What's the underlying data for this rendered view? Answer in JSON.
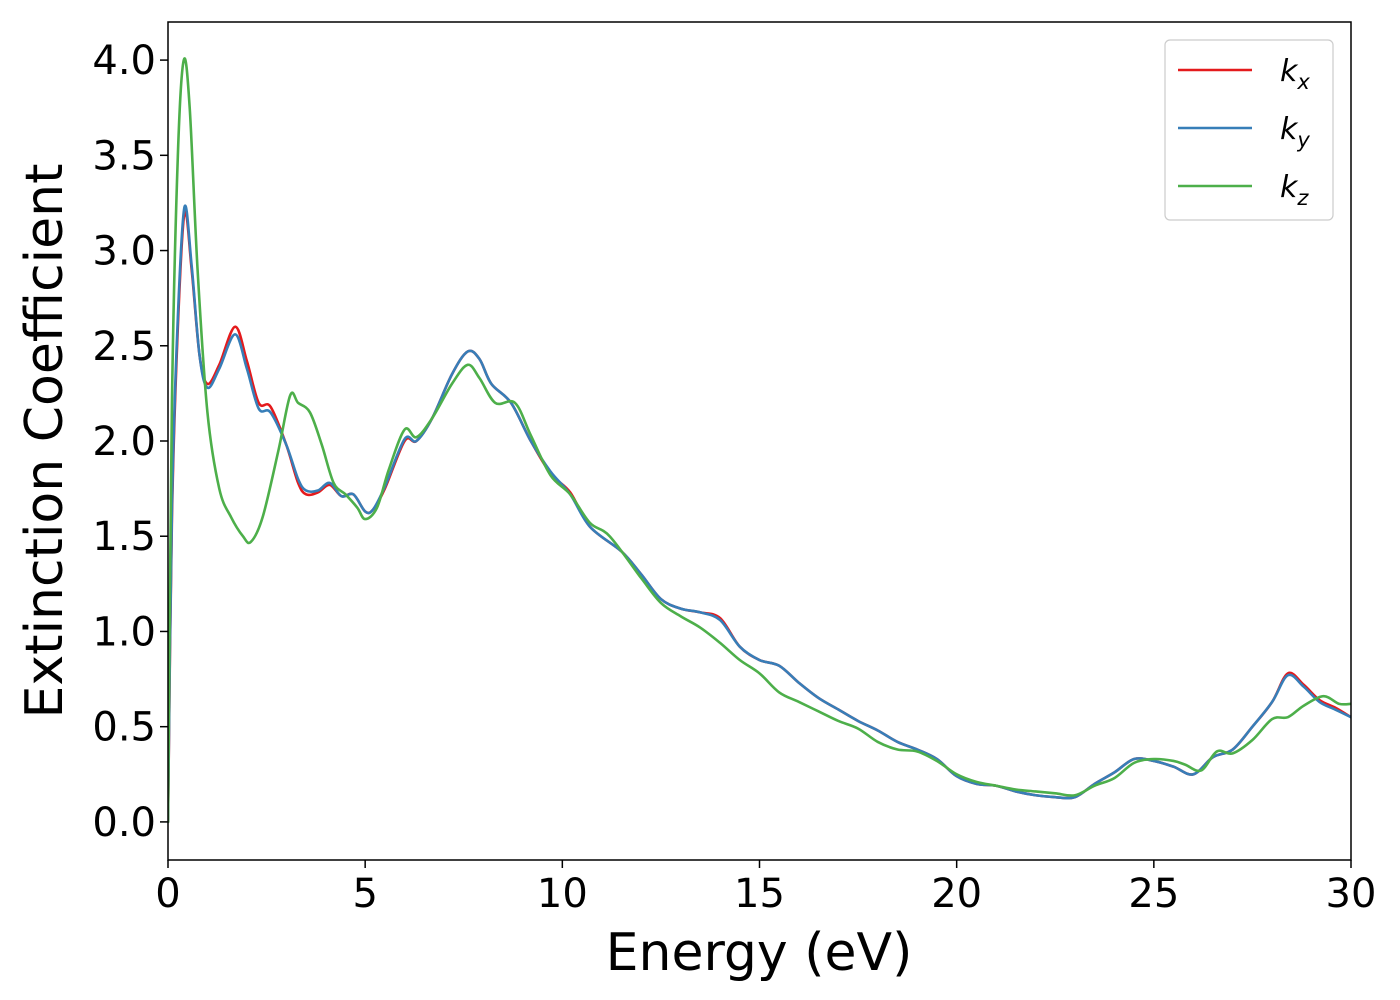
{
  "chart_data": {
    "type": "line",
    "title": "",
    "xlabel": "Energy (eV)",
    "ylabel": "Extinction Coefficient",
    "xlim": [
      0,
      30
    ],
    "ylim": [
      -0.2,
      4.2
    ],
    "xticks": [
      0,
      5,
      10,
      15,
      20,
      25,
      30
    ],
    "xtick_labels": [
      "0",
      "5",
      "10",
      "15",
      "20",
      "25",
      "30"
    ],
    "yticks": [
      0.0,
      0.5,
      1.0,
      1.5,
      2.0,
      2.5,
      3.0,
      3.5,
      4.0
    ],
    "ytick_labels": [
      "0.0",
      "0.5",
      "1.0",
      "1.5",
      "2.0",
      "2.5",
      "3.0",
      "3.5",
      "4.0"
    ],
    "grid": false,
    "legend_position": "top-right",
    "series": [
      {
        "name": "k_x",
        "name_base": "k",
        "name_sub": "x",
        "color": "#e41a1c",
        "points": [
          [
            0.0,
            0.0
          ],
          [
            0.1,
            1.6
          ],
          [
            0.25,
            2.6
          ],
          [
            0.42,
            3.2
          ],
          [
            0.6,
            2.9
          ],
          [
            0.8,
            2.45
          ],
          [
            1.0,
            2.3
          ],
          [
            1.3,
            2.4
          ],
          [
            1.7,
            2.6
          ],
          [
            2.0,
            2.42
          ],
          [
            2.3,
            2.2
          ],
          [
            2.6,
            2.18
          ],
          [
            3.0,
            1.98
          ],
          [
            3.3,
            1.78
          ],
          [
            3.5,
            1.72
          ],
          [
            3.8,
            1.73
          ],
          [
            4.1,
            1.77
          ],
          [
            4.4,
            1.71
          ],
          [
            4.7,
            1.72
          ],
          [
            5.0,
            1.63
          ],
          [
            5.2,
            1.64
          ],
          [
            5.5,
            1.75
          ],
          [
            6.0,
            2.0
          ],
          [
            6.3,
            2.0
          ],
          [
            6.7,
            2.12
          ],
          [
            7.2,
            2.35
          ],
          [
            7.6,
            2.47
          ],
          [
            7.9,
            2.43
          ],
          [
            8.2,
            2.3
          ],
          [
            8.7,
            2.2
          ],
          [
            9.2,
            2.0
          ],
          [
            9.7,
            1.83
          ],
          [
            10.2,
            1.73
          ],
          [
            10.7,
            1.55
          ],
          [
            11.5,
            1.42
          ],
          [
            12.0,
            1.3
          ],
          [
            12.5,
            1.17
          ],
          [
            13.0,
            1.12
          ],
          [
            13.5,
            1.1
          ],
          [
            14.0,
            1.07
          ],
          [
            14.5,
            0.92
          ],
          [
            15.0,
            0.85
          ],
          [
            15.5,
            0.82
          ],
          [
            16.0,
            0.73
          ],
          [
            16.5,
            0.65
          ],
          [
            17.0,
            0.59
          ],
          [
            17.5,
            0.53
          ],
          [
            18.0,
            0.48
          ],
          [
            18.5,
            0.42
          ],
          [
            19.0,
            0.38
          ],
          [
            19.5,
            0.33
          ],
          [
            20.0,
            0.24
          ],
          [
            20.5,
            0.2
          ],
          [
            21.0,
            0.19
          ],
          [
            21.5,
            0.16
          ],
          [
            22.0,
            0.14
          ],
          [
            22.5,
            0.13
          ],
          [
            23.0,
            0.13
          ],
          [
            23.5,
            0.2
          ],
          [
            24.0,
            0.26
          ],
          [
            24.5,
            0.33
          ],
          [
            25.0,
            0.32
          ],
          [
            25.5,
            0.29
          ],
          [
            26.0,
            0.25
          ],
          [
            26.5,
            0.34
          ],
          [
            27.0,
            0.38
          ],
          [
            27.5,
            0.5
          ],
          [
            28.0,
            0.63
          ],
          [
            28.4,
            0.78
          ],
          [
            28.8,
            0.72
          ],
          [
            29.2,
            0.64
          ],
          [
            29.6,
            0.6
          ],
          [
            30.0,
            0.55
          ]
        ]
      },
      {
        "name": "k_y",
        "name_base": "k",
        "name_sub": "y",
        "color": "#377eb8",
        "points": [
          [
            0.0,
            0.0
          ],
          [
            0.1,
            1.65
          ],
          [
            0.25,
            2.65
          ],
          [
            0.42,
            3.23
          ],
          [
            0.6,
            2.92
          ],
          [
            0.8,
            2.45
          ],
          [
            1.0,
            2.28
          ],
          [
            1.3,
            2.38
          ],
          [
            1.7,
            2.56
          ],
          [
            2.0,
            2.38
          ],
          [
            2.3,
            2.17
          ],
          [
            2.6,
            2.15
          ],
          [
            3.0,
            1.98
          ],
          [
            3.3,
            1.8
          ],
          [
            3.5,
            1.74
          ],
          [
            3.8,
            1.74
          ],
          [
            4.1,
            1.78
          ],
          [
            4.4,
            1.71
          ],
          [
            4.7,
            1.72
          ],
          [
            5.0,
            1.63
          ],
          [
            5.2,
            1.64
          ],
          [
            5.5,
            1.76
          ],
          [
            6.0,
            2.01
          ],
          [
            6.3,
            2.0
          ],
          [
            6.7,
            2.12
          ],
          [
            7.2,
            2.35
          ],
          [
            7.6,
            2.47
          ],
          [
            7.9,
            2.43
          ],
          [
            8.2,
            2.3
          ],
          [
            8.7,
            2.2
          ],
          [
            9.2,
            2.0
          ],
          [
            9.7,
            1.84
          ],
          [
            10.2,
            1.72
          ],
          [
            10.7,
            1.55
          ],
          [
            11.5,
            1.42
          ],
          [
            12.0,
            1.3
          ],
          [
            12.5,
            1.17
          ],
          [
            13.0,
            1.12
          ],
          [
            13.5,
            1.1
          ],
          [
            14.0,
            1.06
          ],
          [
            14.5,
            0.92
          ],
          [
            15.0,
            0.85
          ],
          [
            15.5,
            0.82
          ],
          [
            16.0,
            0.73
          ],
          [
            16.5,
            0.65
          ],
          [
            17.0,
            0.59
          ],
          [
            17.5,
            0.53
          ],
          [
            18.0,
            0.48
          ],
          [
            18.5,
            0.42
          ],
          [
            19.0,
            0.38
          ],
          [
            19.5,
            0.33
          ],
          [
            20.0,
            0.24
          ],
          [
            20.5,
            0.2
          ],
          [
            21.0,
            0.19
          ],
          [
            21.5,
            0.16
          ],
          [
            22.0,
            0.14
          ],
          [
            22.5,
            0.13
          ],
          [
            23.0,
            0.13
          ],
          [
            23.5,
            0.2
          ],
          [
            24.0,
            0.26
          ],
          [
            24.5,
            0.33
          ],
          [
            25.0,
            0.32
          ],
          [
            25.5,
            0.29
          ],
          [
            26.0,
            0.25
          ],
          [
            26.5,
            0.34
          ],
          [
            27.0,
            0.38
          ],
          [
            27.5,
            0.5
          ],
          [
            28.0,
            0.63
          ],
          [
            28.4,
            0.77
          ],
          [
            28.8,
            0.71
          ],
          [
            29.2,
            0.63
          ],
          [
            29.6,
            0.59
          ],
          [
            30.0,
            0.55
          ]
        ]
      },
      {
        "name": "k_z",
        "name_base": "k",
        "name_sub": "z",
        "color": "#4daf4a",
        "points": [
          [
            0.0,
            0.0
          ],
          [
            0.1,
            2.2
          ],
          [
            0.25,
            3.5
          ],
          [
            0.4,
            4.0
          ],
          [
            0.55,
            3.75
          ],
          [
            0.75,
            2.9
          ],
          [
            1.0,
            2.15
          ],
          [
            1.3,
            1.75
          ],
          [
            1.6,
            1.6
          ],
          [
            1.9,
            1.5
          ],
          [
            2.1,
            1.47
          ],
          [
            2.4,
            1.6
          ],
          [
            2.8,
            1.95
          ],
          [
            3.1,
            2.24
          ],
          [
            3.3,
            2.2
          ],
          [
            3.6,
            2.15
          ],
          [
            3.9,
            1.98
          ],
          [
            4.2,
            1.78
          ],
          [
            4.5,
            1.72
          ],
          [
            4.8,
            1.65
          ],
          [
            5.0,
            1.59
          ],
          [
            5.3,
            1.65
          ],
          [
            5.6,
            1.85
          ],
          [
            6.0,
            2.06
          ],
          [
            6.3,
            2.02
          ],
          [
            6.7,
            2.12
          ],
          [
            7.2,
            2.3
          ],
          [
            7.6,
            2.4
          ],
          [
            7.9,
            2.33
          ],
          [
            8.3,
            2.2
          ],
          [
            8.8,
            2.2
          ],
          [
            9.2,
            2.03
          ],
          [
            9.7,
            1.82
          ],
          [
            10.2,
            1.72
          ],
          [
            10.7,
            1.57
          ],
          [
            11.2,
            1.5
          ],
          [
            12.0,
            1.28
          ],
          [
            12.5,
            1.15
          ],
          [
            13.0,
            1.08
          ],
          [
            13.5,
            1.02
          ],
          [
            14.0,
            0.94
          ],
          [
            14.5,
            0.85
          ],
          [
            15.0,
            0.78
          ],
          [
            15.5,
            0.68
          ],
          [
            16.0,
            0.63
          ],
          [
            16.5,
            0.58
          ],
          [
            17.0,
            0.53
          ],
          [
            17.5,
            0.49
          ],
          [
            18.0,
            0.42
          ],
          [
            18.5,
            0.38
          ],
          [
            19.0,
            0.37
          ],
          [
            19.5,
            0.32
          ],
          [
            20.0,
            0.25
          ],
          [
            20.5,
            0.21
          ],
          [
            21.0,
            0.19
          ],
          [
            21.5,
            0.17
          ],
          [
            22.0,
            0.16
          ],
          [
            22.5,
            0.15
          ],
          [
            23.0,
            0.14
          ],
          [
            23.5,
            0.19
          ],
          [
            24.0,
            0.23
          ],
          [
            24.5,
            0.31
          ],
          [
            25.0,
            0.33
          ],
          [
            25.5,
            0.32
          ],
          [
            25.8,
            0.3
          ],
          [
            26.2,
            0.27
          ],
          [
            26.6,
            0.37
          ],
          [
            27.0,
            0.36
          ],
          [
            27.5,
            0.43
          ],
          [
            28.0,
            0.54
          ],
          [
            28.4,
            0.55
          ],
          [
            28.8,
            0.61
          ],
          [
            29.3,
            0.66
          ],
          [
            29.7,
            0.62
          ],
          [
            30.0,
            0.62
          ]
        ]
      }
    ]
  }
}
